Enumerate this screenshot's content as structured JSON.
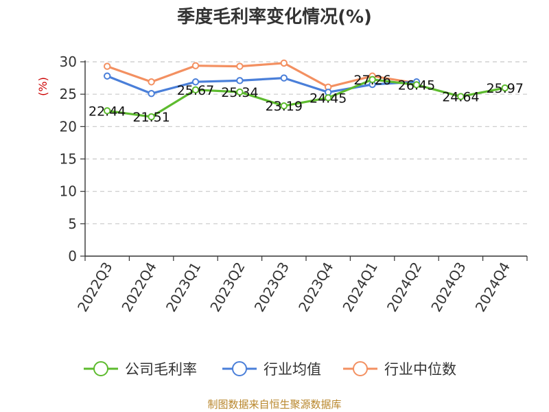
{
  "chart_data": {
    "type": "line",
    "title": "季度毛利率变化情况(%)",
    "ylabel": "(%)",
    "xlabel": "",
    "ylim": [
      0,
      30
    ],
    "yticks": [
      0,
      5,
      10,
      15,
      20,
      25,
      30
    ],
    "grid": "horizontal-dashed",
    "legend_position": "bottom",
    "categories": [
      "2022Q3",
      "2022Q4",
      "2023Q1",
      "2023Q2",
      "2023Q3",
      "2023Q4",
      "2024Q1",
      "2024Q2",
      "2024Q3",
      "2024Q4"
    ],
    "series": [
      {
        "name": "公司毛利率",
        "color": "#5dbb2e",
        "values": [
          22.44,
          21.51,
          25.67,
          25.34,
          23.19,
          24.45,
          27.26,
          26.45,
          24.64,
          25.97
        ],
        "show_labels": true
      },
      {
        "name": "行业均值",
        "color": "#4a7fd9",
        "values": [
          27.8,
          25.1,
          26.9,
          27.1,
          27.5,
          25.3,
          26.5,
          26.9,
          null,
          null
        ],
        "show_labels": false
      },
      {
        "name": "行业中位数",
        "color": "#f39061",
        "values": [
          29.3,
          26.9,
          29.4,
          29.3,
          29.8,
          26.1,
          27.8,
          26.7,
          null,
          null
        ],
        "show_labels": false
      }
    ]
  },
  "source_text": "制图数据来自恒生聚源数据库"
}
